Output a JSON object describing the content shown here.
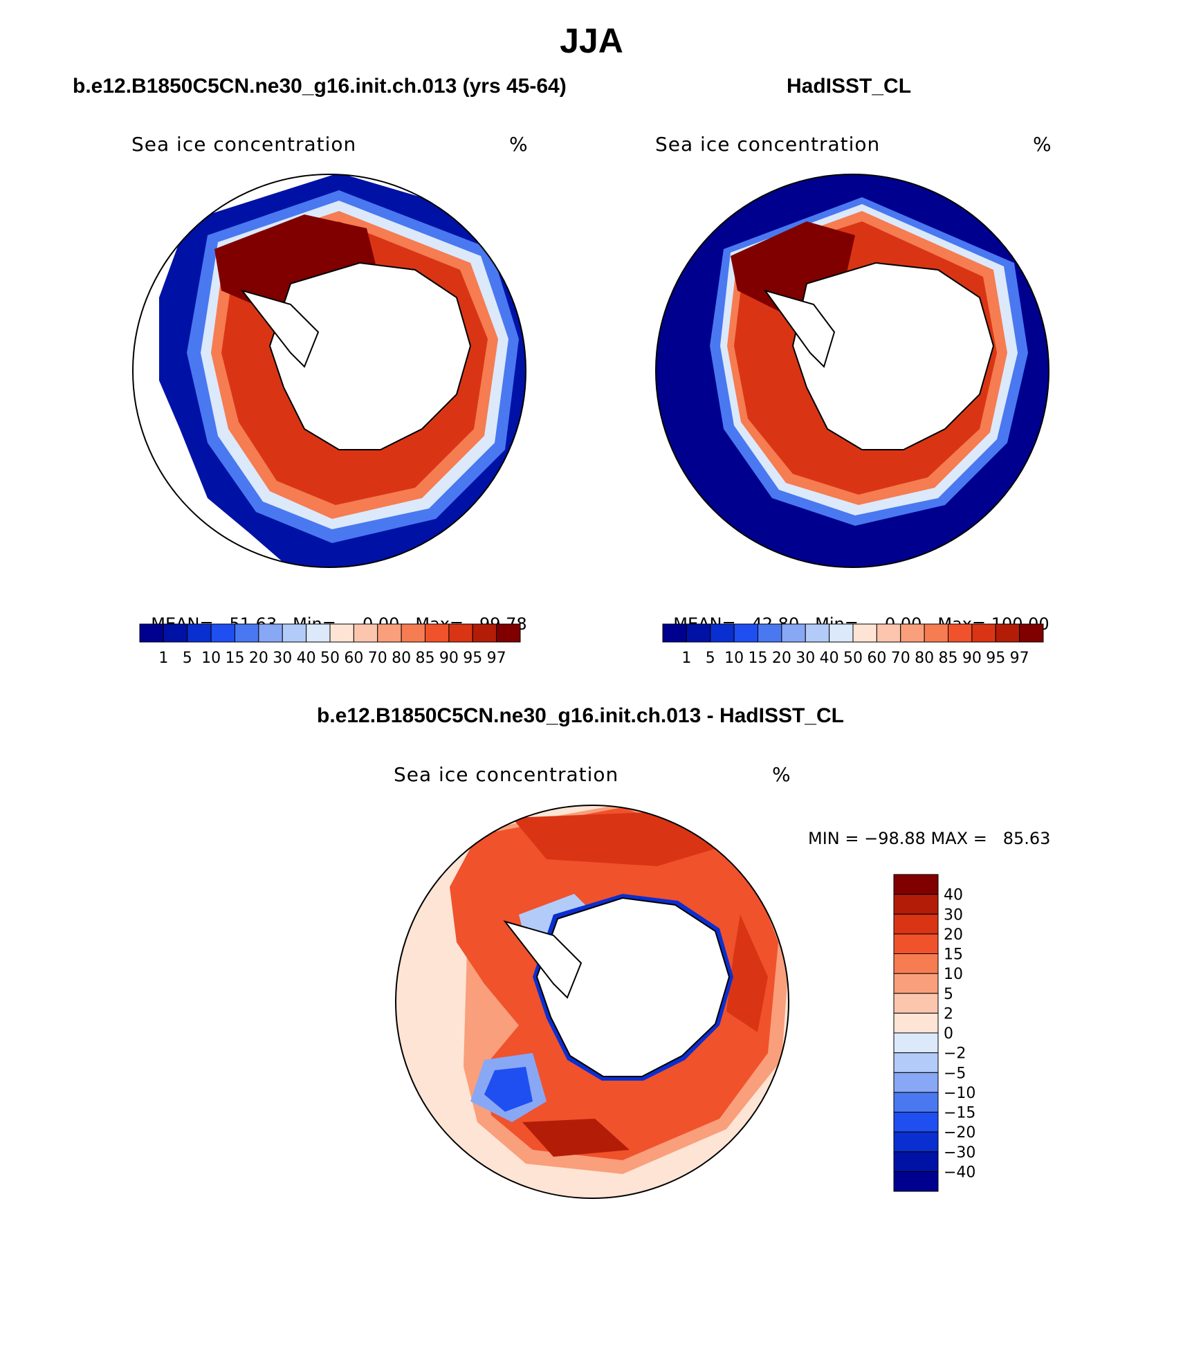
{
  "main_title": "JJA",
  "panels": [
    {
      "title": "b.e12.B1850C5CN.ne30_g16.init.ch.013 (yrs 45-64)",
      "left_label": "Sea ice concentration",
      "right_label": "%",
      "stats": {
        "mean_label": "MEAN=",
        "mean": "51.63",
        "min_label": "Min=",
        "min": "0.00",
        "max_label": "Max=",
        "max": "99.78"
      }
    },
    {
      "title": "HadISST_CL",
      "left_label": "Sea ice concentration",
      "right_label": "%",
      "stats": {
        "mean_label": "MEAN=",
        "mean": "42.80",
        "min_label": "Min=",
        "min": "0.00",
        "max_label": "Max=",
        "max": "100.00"
      }
    },
    {
      "title": "b.e12.B1850C5CN.ne30_g16.init.ch.013 - HadISST_CL",
      "left_label": "Sea ice concentration",
      "right_label": "%",
      "minmax": "MIN = −98.88 MAX =   85.63"
    }
  ],
  "colorbar_concentration": {
    "levels": [
      "1",
      "5",
      "10",
      "15",
      "20",
      "30",
      "40",
      "50",
      "60",
      "70",
      "80",
      "85",
      "90",
      "95",
      "97"
    ],
    "colors": [
      "#00008f",
      "#0012a6",
      "#0a2fd0",
      "#1f4ff0",
      "#4a78f0",
      "#88a8f5",
      "#b3cbf8",
      "#dbe9fb",
      "#fde4d4",
      "#fbc6ad",
      "#f99f7b",
      "#f67c52",
      "#f0522c",
      "#d93515",
      "#b31d08",
      "#800000"
    ]
  },
  "colorbar_difference": {
    "levels": [
      "−40",
      "−30",
      "−20",
      "−15",
      "−10",
      "−5",
      "−2",
      "0",
      "2",
      "5",
      "10",
      "15",
      "20",
      "30",
      "40"
    ],
    "colors": [
      "#00008f",
      "#0012a6",
      "#0a2fd0",
      "#1f4ff0",
      "#4a78f0",
      "#88a8f5",
      "#b3cbf8",
      "#dbe9fb",
      "#fde4d4",
      "#fbc6ad",
      "#f99f7b",
      "#f67c52",
      "#f0522c",
      "#d93515",
      "#b31d08",
      "#800000"
    ]
  }
}
